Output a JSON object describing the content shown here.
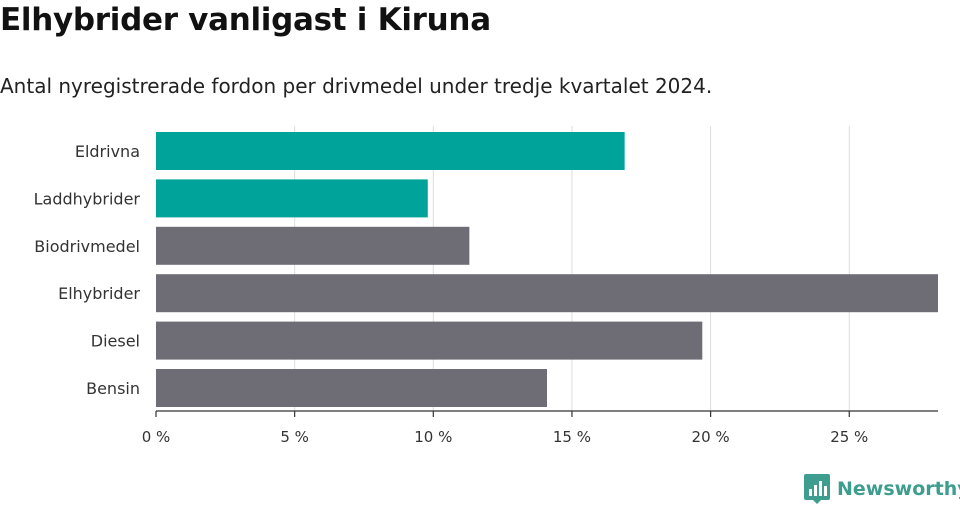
{
  "chart_data": {
    "type": "bar",
    "orientation": "horizontal",
    "title": "Elhybrider vanligast i Kiruna",
    "subtitle": "Antal nyregistrerade fordon per drivmedel under tredje kvartalet 2024.",
    "categories": [
      "Eldrivna",
      "Laddhybrider",
      "Biodrivmedel",
      "Elhybrider",
      "Diesel",
      "Bensin"
    ],
    "values": [
      16.9,
      9.8,
      11.3,
      28.2,
      19.7,
      14.1
    ],
    "colors": [
      "#00a39a",
      "#00a39a",
      "#6e6d75",
      "#6e6d75",
      "#6e6d75",
      "#6e6d75"
    ],
    "xlim": [
      0,
      28.2
    ],
    "xticks": [
      0,
      5,
      10,
      15,
      20,
      25
    ],
    "xtick_labels": [
      "0 %",
      "5 %",
      "10 %",
      "15 %",
      "20 %",
      "25 %"
    ],
    "xlabel": "",
    "ylabel": "",
    "grid": true,
    "legend": "none"
  },
  "brand": {
    "name": "Newsworthy",
    "color": "#3d9d8f"
  }
}
